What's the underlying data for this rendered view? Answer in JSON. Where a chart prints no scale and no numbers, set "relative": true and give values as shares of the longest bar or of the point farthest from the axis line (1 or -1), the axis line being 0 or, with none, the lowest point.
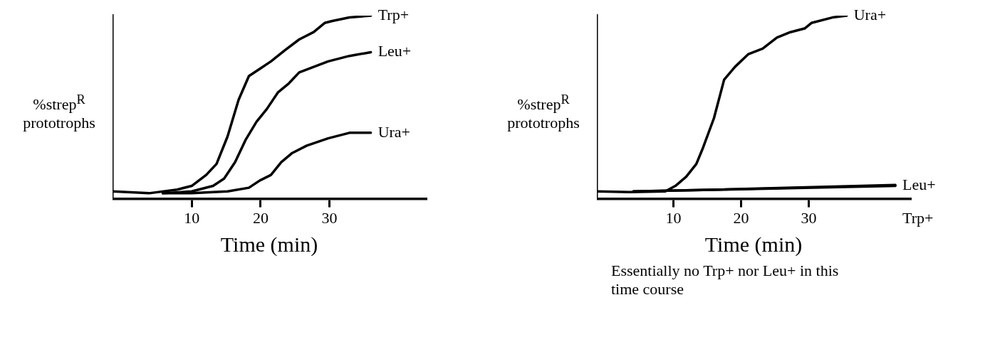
{
  "chart_data": [
    {
      "type": "line",
      "xlabel": "Time (min)",
      "ylabel": "%strep$^{R}$ prototrophs",
      "relative": true,
      "xlim": [
        -1.5,
        44
      ],
      "xticks": [
        10,
        20,
        30
      ],
      "legend": false,
      "grid": false,
      "marker": "none",
      "line_style": "solid",
      "series": [
        {
          "name": "Trp+",
          "color": "#000000",
          "x": [
            -1.5,
            3.8,
            7.9,
            10,
            12.1,
            13.6,
            15.2,
            16.8,
            18.3,
            19.9,
            21.5,
            23.5,
            25.6,
            27.7,
            29.3,
            30.3,
            32.9,
            36
          ],
          "values": [
            0.04,
            0.03,
            0.05,
            0.07,
            0.13,
            0.19,
            0.34,
            0.54,
            0.67,
            0.71,
            0.75,
            0.81,
            0.87,
            0.91,
            0.96,
            0.97,
            0.99,
            1
          ]
        },
        {
          "name": "Leu+",
          "color": "#000000",
          "x": [
            5.8,
            10,
            13.1,
            14.7,
            16.3,
            17.8,
            19.4,
            20.9,
            22.5,
            24.1,
            25.6,
            27.7,
            29.8,
            32.9,
            36
          ],
          "values": [
            0.03,
            0.04,
            0.07,
            0.11,
            0.2,
            0.32,
            0.42,
            0.49,
            0.58,
            0.63,
            0.69,
            0.72,
            0.75,
            0.78,
            0.8
          ]
        },
        {
          "name": "Ura+",
          "color": "#000000",
          "x": [
            5.8,
            10,
            15.2,
            18.3,
            19.9,
            21.5,
            23,
            24.6,
            26.7,
            29.8,
            32.9,
            36
          ],
          "values": [
            0.03,
            0.03,
            0.04,
            0.06,
            0.1,
            0.13,
            0.2,
            0.25,
            0.29,
            0.33,
            0.36,
            0.36
          ]
        }
      ]
    },
    {
      "type": "line",
      "xlabel": "Time (min)",
      "ylabel": "%strep$^{R}$ prototrophs",
      "relative": true,
      "xlim": [
        -1.3,
        45
      ],
      "xticks": [
        10,
        20,
        30
      ],
      "legend": false,
      "grid": false,
      "marker": "none",
      "line_style": "solid",
      "annotations": [
        "Essentially no Trp+ nor Leu+ in this time course"
      ],
      "series": [
        {
          "name": "Ura+",
          "color": "#000000",
          "x": [
            -1.3,
            3.6,
            8.8,
            10.3,
            11.9,
            13.4,
            14.4,
            16,
            17.5,
            19.1,
            21.1,
            23.2,
            25.3,
            27.3,
            29.4,
            30.4,
            33.5,
            35.6
          ],
          "values": [
            0.04,
            0.036,
            0.04,
            0.07,
            0.12,
            0.19,
            0.28,
            0.44,
            0.65,
            0.72,
            0.79,
            0.82,
            0.88,
            0.91,
            0.93,
            0.96,
            0.99,
            1
          ]
        },
        {
          "name": "Leu+",
          "color": "#000000",
          "x": [
            4.1,
            17,
            42.8
          ],
          "values": [
            0.04,
            0.05,
            0.07
          ]
        },
        {
          "name": "Trp+",
          "color": "#000000",
          "x": [
            4.1,
            17,
            42.8
          ],
          "values": [
            0.04,
            0.05,
            0.075
          ]
        }
      ]
    }
  ]
}
